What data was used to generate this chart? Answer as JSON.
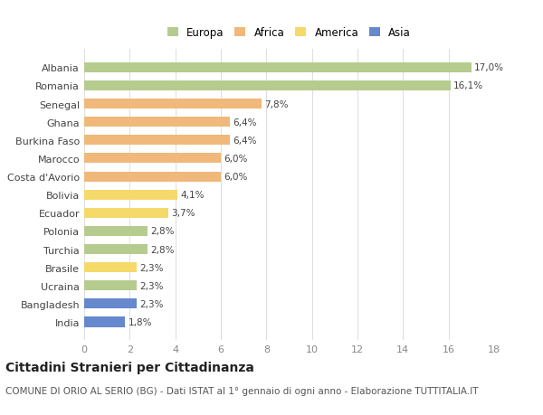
{
  "categories": [
    "Albania",
    "Romania",
    "Senegal",
    "Ghana",
    "Burkina Faso",
    "Marocco",
    "Costa d'Avorio",
    "Bolivia",
    "Ecuador",
    "Polonia",
    "Turchia",
    "Brasile",
    "Ucraina",
    "Bangladesh",
    "India"
  ],
  "values": [
    17.0,
    16.1,
    7.8,
    6.4,
    6.4,
    6.0,
    6.0,
    4.1,
    3.7,
    2.8,
    2.8,
    2.3,
    2.3,
    2.3,
    1.8
  ],
  "labels": [
    "17,0%",
    "16,1%",
    "7,8%",
    "6,4%",
    "6,4%",
    "6,0%",
    "6,0%",
    "4,1%",
    "3,7%",
    "2,8%",
    "2,8%",
    "2,3%",
    "2,3%",
    "2,3%",
    "1,8%"
  ],
  "continent": [
    "Europa",
    "Europa",
    "Africa",
    "Africa",
    "Africa",
    "Africa",
    "Africa",
    "America",
    "America",
    "Europa",
    "Europa",
    "America",
    "Europa",
    "Asia",
    "Asia"
  ],
  "colors": {
    "Europa": "#b5cc8e",
    "Africa": "#f0b87a",
    "America": "#f5d96b",
    "Asia": "#6688cc"
  },
  "background_color": "#ffffff",
  "plot_background": "#ffffff",
  "xlim": [
    0,
    18
  ],
  "xticks": [
    0,
    2,
    4,
    6,
    8,
    10,
    12,
    14,
    16,
    18
  ],
  "title": "Cittadini Stranieri per Cittadinanza",
  "subtitle": "COMUNE DI ORIO AL SERIO (BG) - Dati ISTAT al 1° gennaio di ogni anno - Elaborazione TUTTITALIA.IT",
  "title_fontsize": 10,
  "subtitle_fontsize": 7.5,
  "label_fontsize": 7.5,
  "ytick_fontsize": 8,
  "xtick_fontsize": 8,
  "legend_fontsize": 8.5
}
